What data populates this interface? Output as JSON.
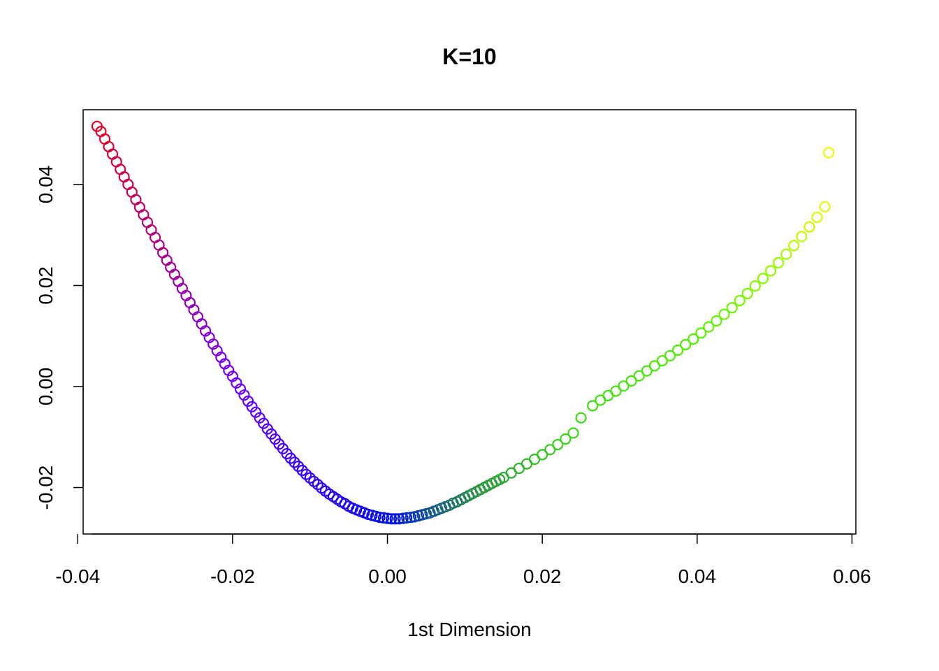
{
  "chart_data": {
    "type": "scatter",
    "title": "K=10",
    "xlabel": "1st Dimension",
    "ylabel": "",
    "xlim": [
      -0.0393,
      0.0605
    ],
    "ylim": [
      -0.0292,
      0.0548
    ],
    "x_ticks": [
      -0.04,
      -0.02,
      0.0,
      0.02,
      0.04,
      0.06
    ],
    "x_tick_labels": [
      "-0.04",
      "-0.02",
      "0.00",
      "0.02",
      "0.04",
      "0.06"
    ],
    "y_ticks": [
      -0.02,
      0.0,
      0.02,
      0.04
    ],
    "y_tick_labels": [
      "-0.02",
      "0.00",
      "0.02",
      "0.04"
    ],
    "grid": false,
    "marker": "open-circle",
    "color_scale": "rainbow: red at left end, through magenta, purple, blue at the minimum, green, to yellow at right end",
    "series": [
      {
        "points": [
          [
            -0.0375,
            0.0515
          ],
          [
            -0.037,
            0.0505
          ],
          [
            -0.0365,
            0.049
          ],
          [
            -0.036,
            0.0475
          ],
          [
            -0.0355,
            0.046
          ],
          [
            -0.035,
            0.0445
          ],
          [
            -0.0345,
            0.043
          ],
          [
            -0.034,
            0.0415
          ],
          [
            -0.0335,
            0.04
          ],
          [
            -0.033,
            0.0385
          ],
          [
            -0.0325,
            0.037
          ],
          [
            -0.032,
            0.0355
          ],
          [
            -0.0315,
            0.034
          ],
          [
            -0.031,
            0.0325
          ],
          [
            -0.0305,
            0.031
          ],
          [
            -0.03,
            0.0295
          ],
          [
            -0.0295,
            0.028
          ],
          [
            -0.029,
            0.0265
          ],
          [
            -0.0285,
            0.025
          ],
          [
            -0.028,
            0.0236
          ],
          [
            -0.0275,
            0.0222
          ],
          [
            -0.027,
            0.0208
          ],
          [
            -0.0265,
            0.0194
          ],
          [
            -0.026,
            0.018
          ],
          [
            -0.0255,
            0.0166
          ],
          [
            -0.025,
            0.0152
          ],
          [
            -0.0245,
            0.0138
          ],
          [
            -0.024,
            0.0124
          ],
          [
            -0.0235,
            0.011
          ],
          [
            -0.023,
            0.0097
          ],
          [
            -0.0225,
            0.0084
          ],
          [
            -0.022,
            0.0071
          ],
          [
            -0.0215,
            0.0058
          ],
          [
            -0.021,
            0.0045
          ],
          [
            -0.0205,
            0.0032
          ],
          [
            -0.02,
            0.002
          ],
          [
            -0.0195,
            0.0007
          ],
          [
            -0.019,
            -0.0005
          ],
          [
            -0.0185,
            -0.0017
          ],
          [
            -0.018,
            -0.0029
          ],
          [
            -0.0175,
            -0.004
          ],
          [
            -0.017,
            -0.0051
          ],
          [
            -0.0165,
            -0.0062
          ],
          [
            -0.016,
            -0.0073
          ],
          [
            -0.0155,
            -0.0084
          ],
          [
            -0.015,
            -0.0094
          ],
          [
            -0.0145,
            -0.0104
          ],
          [
            -0.014,
            -0.0114
          ],
          [
            -0.0135,
            -0.0123
          ],
          [
            -0.013,
            -0.0133
          ],
          [
            -0.0125,
            -0.0142
          ],
          [
            -0.012,
            -0.015
          ],
          [
            -0.0115,
            -0.0158
          ],
          [
            -0.011,
            -0.0166
          ],
          [
            -0.0105,
            -0.0174
          ],
          [
            -0.01,
            -0.0181
          ],
          [
            -0.0095,
            -0.0188
          ],
          [
            -0.009,
            -0.0194
          ],
          [
            -0.0085,
            -0.0201
          ],
          [
            -0.008,
            -0.0207
          ],
          [
            -0.0075,
            -0.0213
          ],
          [
            -0.007,
            -0.0218
          ],
          [
            -0.0065,
            -0.0223
          ],
          [
            -0.006,
            -0.0228
          ],
          [
            -0.0055,
            -0.0232
          ],
          [
            -0.005,
            -0.0237
          ],
          [
            -0.0045,
            -0.0241
          ],
          [
            -0.004,
            -0.0244
          ],
          [
            -0.0035,
            -0.0247
          ],
          [
            -0.003,
            -0.025
          ],
          [
            -0.0025,
            -0.0253
          ],
          [
            -0.002,
            -0.0255
          ],
          [
            -0.0015,
            -0.0257
          ],
          [
            -0.001,
            -0.0259
          ],
          [
            -0.0005,
            -0.026
          ],
          [
            0.0,
            -0.0261
          ],
          [
            0.0005,
            -0.0262
          ],
          [
            0.001,
            -0.0262
          ],
          [
            0.0015,
            -0.0262
          ],
          [
            0.002,
            -0.0261
          ],
          [
            0.0025,
            -0.026
          ],
          [
            0.003,
            -0.0259
          ],
          [
            0.0035,
            -0.0258
          ],
          [
            0.004,
            -0.0256
          ],
          [
            0.0045,
            -0.0254
          ],
          [
            0.005,
            -0.0252
          ],
          [
            0.0055,
            -0.025
          ],
          [
            0.006,
            -0.0247
          ],
          [
            0.0065,
            -0.0244
          ],
          [
            0.007,
            -0.0241
          ],
          [
            0.0075,
            -0.0238
          ],
          [
            0.008,
            -0.0235
          ],
          [
            0.0085,
            -0.0231
          ],
          [
            0.009,
            -0.0228
          ],
          [
            0.0095,
            -0.0224
          ],
          [
            0.01,
            -0.022
          ],
          [
            0.0105,
            -0.0216
          ],
          [
            0.011,
            -0.0212
          ],
          [
            0.0115,
            -0.0208
          ],
          [
            0.012,
            -0.0204
          ],
          [
            0.0125,
            -0.02
          ],
          [
            0.013,
            -0.0196
          ],
          [
            0.0135,
            -0.0192
          ],
          [
            0.014,
            -0.0188
          ],
          [
            0.0145,
            -0.0184
          ],
          [
            0.015,
            -0.018
          ],
          [
            0.016,
            -0.0171
          ],
          [
            0.017,
            -0.0162
          ],
          [
            0.018,
            -0.0153
          ],
          [
            0.019,
            -0.0144
          ],
          [
            0.02,
            -0.0135
          ],
          [
            0.021,
            -0.0125
          ],
          [
            0.022,
            -0.0115
          ],
          [
            0.023,
            -0.0104
          ],
          [
            0.024,
            -0.0092
          ],
          [
            0.025,
            -0.0062
          ],
          [
            0.0265,
            -0.0038
          ],
          [
            0.0275,
            -0.0027
          ],
          [
            0.0285,
            -0.0018
          ],
          [
            0.0295,
            -0.0009
          ],
          [
            0.0305,
            0.0001
          ],
          [
            0.0315,
            0.0011
          ],
          [
            0.0325,
            0.0021
          ],
          [
            0.0335,
            0.0031
          ],
          [
            0.0345,
            0.0041
          ],
          [
            0.0355,
            0.0051
          ],
          [
            0.0365,
            0.0061
          ],
          [
            0.0375,
            0.0072
          ],
          [
            0.0385,
            0.0083
          ],
          [
            0.0395,
            0.0094
          ],
          [
            0.0405,
            0.0106
          ],
          [
            0.0415,
            0.0118
          ],
          [
            0.0425,
            0.013
          ],
          [
            0.0435,
            0.0143
          ],
          [
            0.0445,
            0.0156
          ],
          [
            0.0455,
            0.017
          ],
          [
            0.0465,
            0.0184
          ],
          [
            0.0475,
            0.0199
          ],
          [
            0.0485,
            0.0214
          ],
          [
            0.0495,
            0.0229
          ],
          [
            0.0505,
            0.0245
          ],
          [
            0.0515,
            0.0262
          ],
          [
            0.0525,
            0.0279
          ],
          [
            0.0535,
            0.0297
          ],
          [
            0.0545,
            0.0316
          ],
          [
            0.0555,
            0.0335
          ],
          [
            0.0565,
            0.0356
          ],
          [
            0.057,
            0.0463
          ]
        ]
      }
    ]
  }
}
